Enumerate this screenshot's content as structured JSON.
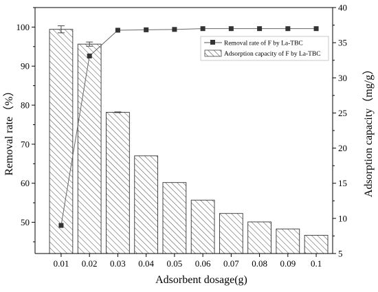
{
  "chart_data": {
    "type": "bar",
    "title": "",
    "xlabel": "Adsorbent dosage(g)",
    "ylabel_left": "Removal rate（%）",
    "ylabel_right": "Adsorption capacity（mg/g）",
    "categories": [
      "0.01",
      "0.02",
      "0.03",
      "0.04",
      "0.05",
      "0.06",
      "0.07",
      "0.08",
      "0.09",
      "0.1"
    ],
    "ylim_left": [
      42,
      105
    ],
    "ylim_right": [
      5,
      40
    ],
    "yticks_left": [
      "50",
      "60",
      "70",
      "80",
      "90",
      "100"
    ],
    "yticks_right": [
      "5",
      "10",
      "15",
      "20",
      "25",
      "30",
      "35",
      "40"
    ],
    "grid": false,
    "legend_position": "top-right",
    "series": [
      {
        "name": "Removal rate of F by  La-TBC",
        "type": "line",
        "axis": "left",
        "marker": "square",
        "values": [
          49.2,
          92.6,
          99.2,
          99.3,
          99.4,
          99.6,
          99.6,
          99.6,
          99.6,
          99.6
        ],
        "error": [
          0,
          0.5,
          0,
          0,
          0,
          0,
          0,
          0,
          0,
          0
        ]
      },
      {
        "name": "Adsorption capacity of F by  La-TBC",
        "type": "bar",
        "axis": "right",
        "pattern": "diagonal-hatch",
        "values": [
          36.9,
          34.8,
          25.1,
          18.9,
          15.1,
          12.6,
          10.7,
          9.5,
          8.5,
          7.6
        ],
        "error": [
          0.5,
          0.3,
          0.05,
          0,
          0,
          0,
          0,
          0,
          0,
          0
        ]
      }
    ]
  }
}
